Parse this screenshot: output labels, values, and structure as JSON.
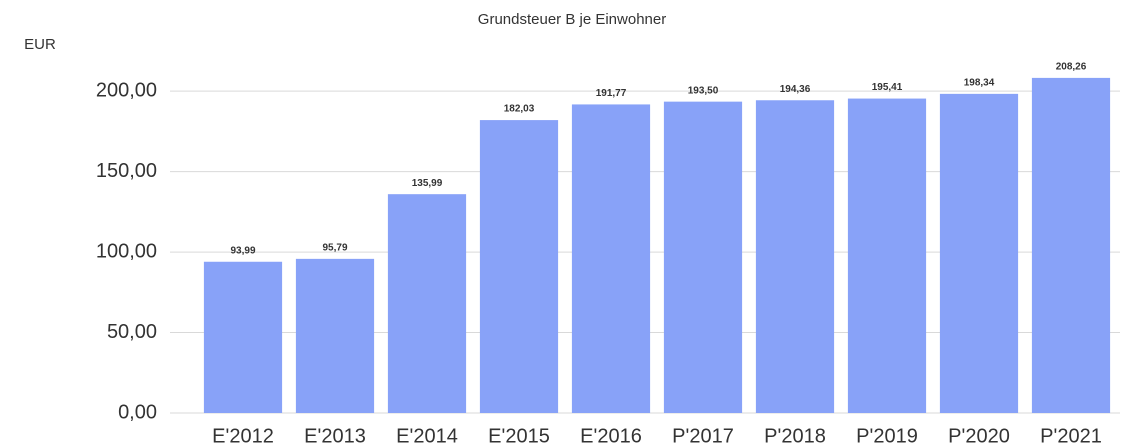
{
  "chart_data": {
    "type": "bar",
    "title": "Grundsteuer B je Einwohner",
    "ylabel": "EUR",
    "categories": [
      "E'2012",
      "E'2013",
      "E'2014",
      "E'2015",
      "E'2016",
      "P'2017",
      "P'2018",
      "P'2019",
      "P'2020",
      "P'2021"
    ],
    "values": [
      93.99,
      95.79,
      135.99,
      182.03,
      191.77,
      193.5,
      194.36,
      195.41,
      198.34,
      208.26
    ],
    "value_labels": [
      "93,99",
      "95,79",
      "135,99",
      "182,03",
      "191,77",
      "193,50",
      "194,36",
      "195,41",
      "198,34",
      "208,26"
    ],
    "color": "#88a2f8",
    "ylim": [
      0,
      220
    ],
    "yticks": [
      {
        "value": 0,
        "label": "0,00"
      },
      {
        "value": 50,
        "label": "50,00"
      },
      {
        "value": 100,
        "label": "100,00"
      },
      {
        "value": 150,
        "label": "150,00"
      },
      {
        "value": 200,
        "label": "200,00"
      }
    ],
    "grid": true
  }
}
